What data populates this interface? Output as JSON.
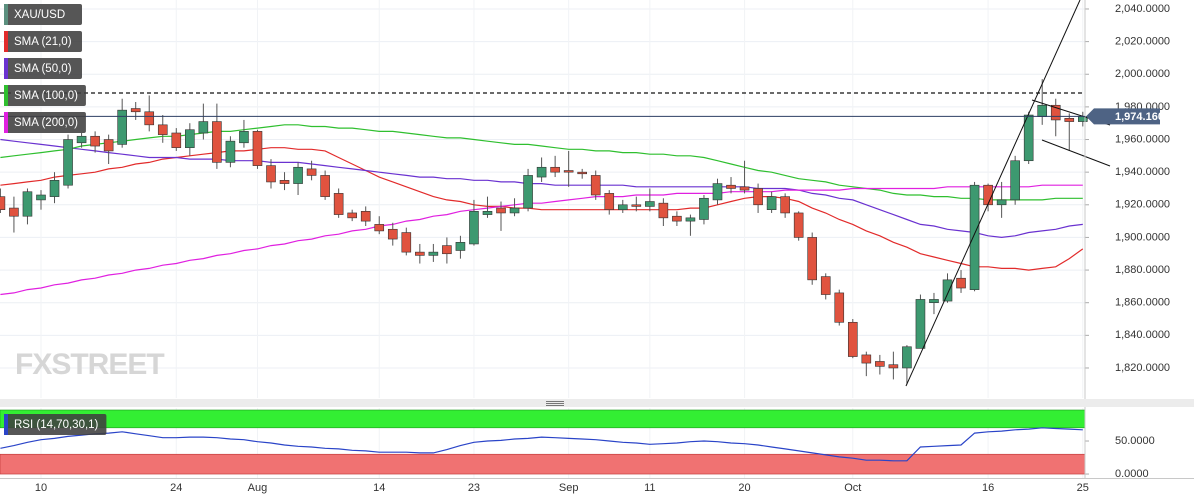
{
  "chart_data": [
    {
      "type": "candlestick",
      "watermark": "FXSTREET",
      "categories": [
        null,
        null,
        null,
        "10",
        null,
        null,
        null,
        null,
        null,
        null,
        null,
        null,
        null,
        "24",
        null,
        null,
        null,
        null,
        null,
        "Aug",
        null,
        null,
        null,
        null,
        null,
        null,
        null,
        null,
        "14",
        null,
        null,
        null,
        null,
        null,
        null,
        "23",
        null,
        null,
        null,
        null,
        null,
        null,
        "Sep",
        null,
        null,
        null,
        null,
        null,
        "11",
        null,
        null,
        null,
        null,
        null,
        null,
        "20",
        null,
        null,
        null,
        null,
        null,
        null,
        null,
        "Oct",
        null,
        null,
        null,
        null,
        null,
        null,
        null,
        null,
        null,
        "16",
        null,
        null,
        null,
        null,
        null,
        null,
        "25"
      ],
      "ylim": [
        1801.6,
        2045.5
      ],
      "yticks": [
        {
          "value": 1820,
          "label": "1,820.0000"
        },
        {
          "value": 1840,
          "label": "1,840.0000"
        },
        {
          "value": 1860,
          "label": "1,860.0000"
        },
        {
          "value": 1880,
          "label": "1,880.0000"
        },
        {
          "value": 1900,
          "label": "1,900.0000"
        },
        {
          "value": 1920,
          "label": "1,920.0000"
        },
        {
          "value": 1940,
          "label": "1,940.0000"
        },
        {
          "value": 1960,
          "label": "1,960.0000"
        },
        {
          "value": 1980,
          "label": "1,980.0000"
        },
        {
          "value": 2000,
          "label": "2,000.0000"
        },
        {
          "value": 2020,
          "label": "2,020.0000"
        },
        {
          "value": 2040,
          "label": "2,040.0000"
        }
      ],
      "grid": true,
      "last_price": {
        "value": 1974.16,
        "label": "1,974.1600"
      },
      "series": [
        {
          "name": "XAU/USD",
          "type": "candlestick",
          "color": "#5b8f7e",
          "up_color": "#3d9970",
          "down_color": "#e0533f",
          "open": [
            1925,
            1918,
            1913,
            1923,
            1925,
            1932,
            1958,
            1962,
            1960,
            1957,
            1979,
            1977,
            1969,
            1964,
            1955,
            1964,
            1971,
            1946,
            1958,
            1965,
            1944,
            1935,
            1933,
            1942,
            1938,
            1927,
            1915,
            1916,
            1908,
            1905,
            1903,
            1891,
            1889,
            1895,
            1892,
            1896,
            1914,
            1918,
            1915,
            1918,
            1937,
            1943,
            1941,
            1940,
            1938,
            1927,
            1917,
            1920,
            1919,
            1921,
            1913,
            1910,
            1911,
            1923,
            1932,
            1931,
            1930,
            1917,
            1925,
            1915,
            1900,
            1876,
            1866,
            1848,
            1828,
            1824,
            1822,
            1820,
            1832,
            1860,
            1861,
            1875,
            1868,
            1932,
            1920,
            1923,
            1947,
            1974,
            1981,
            1973,
            1971
          ],
          "high": [
            1930,
            1925,
            1930,
            1929,
            1940,
            1963,
            1964,
            1965,
            1963,
            1985,
            1983,
            1987,
            1975,
            1967,
            1970,
            1982,
            1982,
            1962,
            1972,
            1966,
            1948,
            1940,
            1946,
            1947,
            1941,
            1930,
            1917,
            1919,
            1913,
            1909,
            1906,
            1896,
            1896,
            1900,
            1901,
            1923,
            1925,
            1922,
            1924,
            1942,
            1949,
            1950,
            1953,
            1942,
            1941,
            1929,
            1923,
            1925,
            1930,
            1924,
            1916,
            1914,
            1926,
            1936,
            1937,
            1947,
            1933,
            1928,
            1927,
            1916,
            1903,
            1878,
            1868,
            1850,
            1830,
            1828,
            1830,
            1834,
            1865,
            1866,
            1878,
            1880,
            1934,
            1933,
            1934,
            1950,
            1977,
            1997,
            1985,
            1976,
            1977
          ],
          "low": [
            1915,
            1903,
            1908,
            1917,
            1921,
            1930,
            1955,
            1952,
            1945,
            1955,
            1972,
            1965,
            1958,
            1953,
            1950,
            1960,
            1942,
            1943,
            1955,
            1942,
            1930,
            1929,
            1926,
            1935,
            1923,
            1912,
            1910,
            1907,
            1902,
            1895,
            1889,
            1884,
            1885,
            1884,
            1887,
            1895,
            1912,
            1904,
            1913,
            1916,
            1934,
            1937,
            1931,
            1936,
            1923,
            1914,
            1915,
            1916,
            1916,
            1907,
            1907,
            1901,
            1908,
            1920,
            1927,
            1927,
            1915,
            1915,
            1912,
            1898,
            1871,
            1862,
            1846,
            1826,
            1815,
            1816,
            1813,
            1810,
            1832,
            1853,
            1860,
            1866,
            1867,
            1916,
            1912,
            1920,
            1945,
            1969,
            1962,
            1953,
            1968
          ],
          "close": [
            1917,
            1913,
            1928,
            1926,
            1935,
            1960,
            1962,
            1956,
            1953,
            1978,
            1977,
            1969,
            1963,
            1955,
            1966,
            1971,
            1946,
            1959,
            1965,
            1944,
            1934,
            1933,
            1943,
            1938,
            1925,
            1914,
            1912,
            1910,
            1904,
            1899,
            1891,
            1889,
            1891,
            1890,
            1897,
            1916,
            1916,
            1915,
            1918,
            1938,
            1943,
            1940,
            1940,
            1939,
            1926,
            1917,
            1920,
            1919,
            1922,
            1912,
            1910,
            1912,
            1924,
            1933,
            1930,
            1929,
            1920,
            1925,
            1915,
            1900,
            1874,
            1865,
            1848,
            1827,
            1823,
            1821,
            1820,
            1833,
            1862,
            1862,
            1874,
            1869,
            1932,
            1920,
            1923,
            1947,
            1975,
            1981,
            1972,
            1971,
            1974.16
          ]
        },
        {
          "name": "SMA (21,0)",
          "type": "line",
          "color": "#e22b2b",
          "values": [
            1932,
            1933,
            1934,
            1935,
            1937,
            1938,
            1939,
            1940,
            1942,
            1943,
            1945,
            1946,
            1948,
            1949,
            1950,
            1951,
            1952,
            1953,
            1953,
            1954,
            1955,
            1955,
            1954,
            1954,
            1953,
            1949,
            1945,
            1941,
            1937,
            1934,
            1931,
            1928,
            1925,
            1923,
            1922,
            1920,
            1919,
            1919,
            1918,
            1918,
            1917,
            1917,
            1917,
            1917,
            1917,
            1917,
            1917,
            1917,
            1917,
            1917,
            1917,
            1918,
            1918,
            1920,
            1922,
            1924,
            1925,
            1925,
            1924,
            1922,
            1918,
            1915,
            1911,
            1908,
            1904,
            1901,
            1897,
            1894,
            1890,
            1888,
            1886,
            1884,
            1882,
            1882,
            1881,
            1881,
            1880,
            1881,
            1882,
            1887,
            1893
          ]
        },
        {
          "name": "SMA (50,0)",
          "type": "line",
          "color": "#6a32d0",
          "values": [
            1960,
            1959,
            1958,
            1957,
            1956,
            1955,
            1954,
            1953,
            1952,
            1951,
            1950,
            1949,
            1949,
            1949,
            1948,
            1948,
            1948,
            1947,
            1947,
            1947,
            1946,
            1946,
            1946,
            1945,
            1944,
            1943,
            1942,
            1941,
            1940,
            1939,
            1938,
            1937,
            1937,
            1936,
            1936,
            1935,
            1935,
            1934,
            1934,
            1933,
            1933,
            1932,
            1932,
            1932,
            1932,
            1932,
            1932,
            1931,
            1931,
            1931,
            1931,
            1931,
            1931,
            1931,
            1931,
            1931,
            1930,
            1930,
            1930,
            1929,
            1927,
            1926,
            1924,
            1923,
            1920,
            1917,
            1914,
            1911,
            1908,
            1907,
            1905,
            1904,
            1903,
            1901,
            1900,
            1901,
            1903,
            1904,
            1905,
            1907,
            1908
          ]
        },
        {
          "name": "SMA (100,0)",
          "type": "line",
          "color": "#2fbf2f",
          "values": [
            1949,
            1950,
            1951,
            1952,
            1953,
            1954,
            1956,
            1957,
            1958,
            1959,
            1960,
            1961,
            1962,
            1962,
            1963,
            1964,
            1965,
            1965,
            1966,
            1967,
            1968,
            1969,
            1969,
            1968,
            1968,
            1967,
            1967,
            1966,
            1965,
            1965,
            1964,
            1963,
            1962,
            1961,
            1961,
            1960,
            1959,
            1958,
            1957,
            1957,
            1956,
            1955,
            1954,
            1954,
            1953,
            1953,
            1952,
            1952,
            1951,
            1951,
            1950,
            1950,
            1949,
            1947,
            1945,
            1943,
            1941,
            1940,
            1938,
            1936,
            1935,
            1934,
            1932,
            1931,
            1930,
            1929,
            1927,
            1926,
            1926,
            1925,
            1925,
            1924,
            1924,
            1923,
            1923,
            1923,
            1923,
            1923,
            1924,
            1924,
            1924
          ]
        },
        {
          "name": "SMA (200,0)",
          "type": "line",
          "color": "#e020e0",
          "values": [
            1865,
            1866,
            1868,
            1869,
            1871,
            1872,
            1874,
            1875,
            1877,
            1878,
            1880,
            1881,
            1883,
            1884,
            1886,
            1887,
            1889,
            1890,
            1892,
            1893,
            1895,
            1896,
            1898,
            1899,
            1901,
            1902,
            1904,
            1905,
            1907,
            1908,
            1910,
            1911,
            1913,
            1914,
            1916,
            1917,
            1918,
            1919,
            1920,
            1921,
            1921,
            1922,
            1923,
            1924,
            1925,
            1925,
            1925,
            1926,
            1926,
            1926,
            1927,
            1927,
            1927,
            1927,
            1928,
            1928,
            1928,
            1928,
            1929,
            1929,
            1929,
            1929,
            1929,
            1930,
            1930,
            1930,
            1930,
            1930,
            1930,
            1930,
            1931,
            1931,
            1931,
            1931,
            1931,
            1931,
            1931,
            1932,
            1932,
            1932,
            1932
          ]
        }
      ]
    },
    {
      "type": "line",
      "ylim": [
        -6,
        100
      ],
      "yticks": [
        {
          "value": 0,
          "label": "0.0000"
        },
        {
          "value": 50,
          "label": "50.0000"
        }
      ],
      "overbought": 70,
      "oversold": 30,
      "overbought_color": "#33ee33",
      "oversold_color": "#f07272",
      "series": [
        {
          "name": "RSI (14,70,30,1)",
          "type": "line",
          "color": "#2a44c8",
          "values": [
            39,
            43,
            48,
            52,
            54,
            57,
            59,
            61,
            62,
            64,
            61,
            58,
            55,
            55,
            56,
            56,
            55,
            53,
            52,
            49,
            47,
            44,
            42,
            41,
            39,
            38,
            36,
            35,
            33,
            33,
            33,
            32,
            32,
            37,
            43,
            48,
            50,
            51,
            53,
            54,
            56,
            55,
            54,
            53,
            52,
            50,
            48,
            47,
            45,
            46,
            47,
            49,
            50,
            49,
            47,
            46,
            44,
            41,
            38,
            35,
            32,
            29,
            26,
            24,
            21,
            21,
            20,
            20,
            41,
            42,
            43,
            44,
            62,
            64,
            65,
            67,
            68,
            70,
            69,
            68,
            67
          ]
        }
      ]
    }
  ]
}
